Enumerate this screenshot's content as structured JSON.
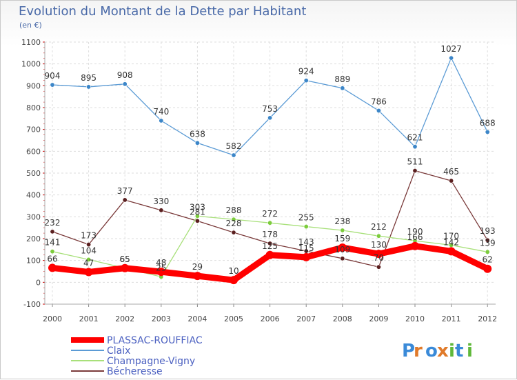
{
  "chart_data": {
    "type": "line",
    "title": "Evolution du Montant de la Dette par Habitant",
    "subtitle": "(en €)",
    "x": [
      "2000",
      "2001",
      "2002",
      "2003",
      "2004",
      "2005",
      "2006",
      "2007",
      "2008",
      "2009",
      "2010",
      "2011",
      "2012"
    ],
    "ylim": [
      -100,
      1100
    ],
    "yticks": [
      -100,
      0,
      100,
      200,
      300,
      400,
      500,
      600,
      700,
      800,
      900,
      1000,
      1100
    ],
    "grid": true,
    "legend_position": "bottom-left",
    "series": [
      {
        "name": "Claix",
        "color": "#5b9bd5",
        "marker": "#3c86c8",
        "values": [
          904,
          895,
          908,
          740,
          638,
          582,
          753,
          924,
          889,
          786,
          621,
          1027,
          688
        ]
      },
      {
        "name": "Bécheresse",
        "color": "#7a3a3a",
        "marker": "#5a1f1f",
        "values": [
          232,
          173,
          377,
          330,
          281,
          228,
          178,
          143,
          109,
          70,
          511,
          465,
          193
        ]
      },
      {
        "name": "Champagne-Vigny",
        "color": "#a8e07a",
        "marker": "#7ccc3c",
        "values": [
          141,
          104,
          65,
          25,
          303,
          288,
          272,
          255,
          238,
          212,
          190,
          170,
          139
        ]
      },
      {
        "name": "PLASSAC-ROUFFIAC",
        "color": "#ff0000",
        "marker": "#ff0000",
        "values": [
          66,
          47,
          65,
          48,
          29,
          10,
          125,
          115,
          159,
          130,
          166,
          142,
          62
        ]
      }
    ],
    "legend_order": [
      "PLASSAC-ROUFFIAC",
      "Claix",
      "Champagne-Vigny",
      "Bécheresse"
    ]
  },
  "logo_text": "Proxiti"
}
